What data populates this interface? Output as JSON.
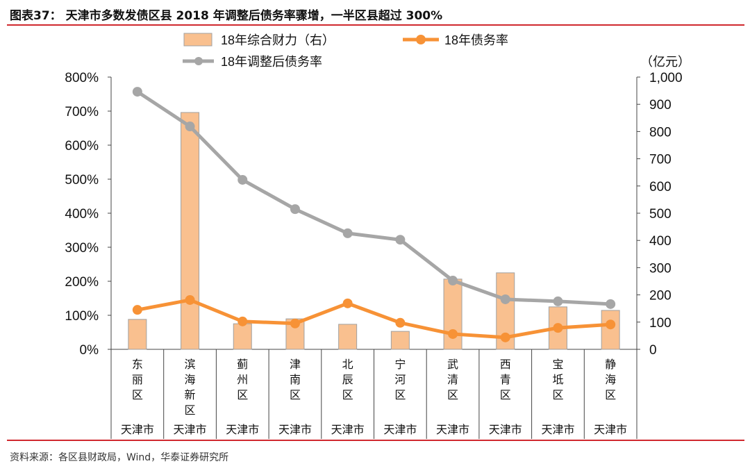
{
  "title": "图表37：  天津市多数发债区县 2018 年调整后债务率骤增，一半区县超过 300%",
  "source": "资料来源：各区县财政局，Wind，华泰证券研究所",
  "colors": {
    "bar": "#f9c08f",
    "bar_border": "#a0a0a0",
    "debt_rate": "#f79236",
    "adjusted": "#a6a6a6",
    "rule": "#d0282e"
  },
  "chart_data": {
    "type": "bar+line",
    "categories": [
      "东丽区",
      "滨海新区",
      "蓟州区",
      "津南区",
      "北辰区",
      "宁河区",
      "武清区",
      "西青区",
      "宝坻区",
      "静海区"
    ],
    "group_label": "天津市",
    "left_axis": {
      "ylim": [
        0,
        800
      ],
      "ticks": [
        "0%",
        "100%",
        "200%",
        "300%",
        "400%",
        "500%",
        "600%",
        "700%",
        "800%"
      ]
    },
    "right_axis": {
      "unit": "（亿元）",
      "ylim": [
        0,
        1000
      ],
      "ticks": [
        "0",
        "100",
        "200",
        "300",
        "400",
        "500",
        "600",
        "700",
        "800",
        "900",
        "1,000"
      ]
    },
    "legend": [
      "18年综合财力（右）",
      "18年债务率",
      "18年调整后债务率"
    ],
    "series": [
      {
        "name": "18年综合财力（右）",
        "type": "bar",
        "axis": "right",
        "values": [
          110,
          870,
          94,
          112,
          92,
          66,
          258,
          281,
          156,
          143
        ]
      },
      {
        "name": "18年债务率",
        "type": "line",
        "axis": "left",
        "values": [
          116,
          145,
          82,
          76,
          135,
          78,
          45,
          35,
          63,
          73
        ]
      },
      {
        "name": "18年调整后债务率",
        "type": "line",
        "axis": "left",
        "values": [
          757,
          655,
          498,
          412,
          341,
          322,
          202,
          147,
          141,
          133
        ]
      }
    ],
    "grid": false,
    "legend_placement": "top"
  }
}
